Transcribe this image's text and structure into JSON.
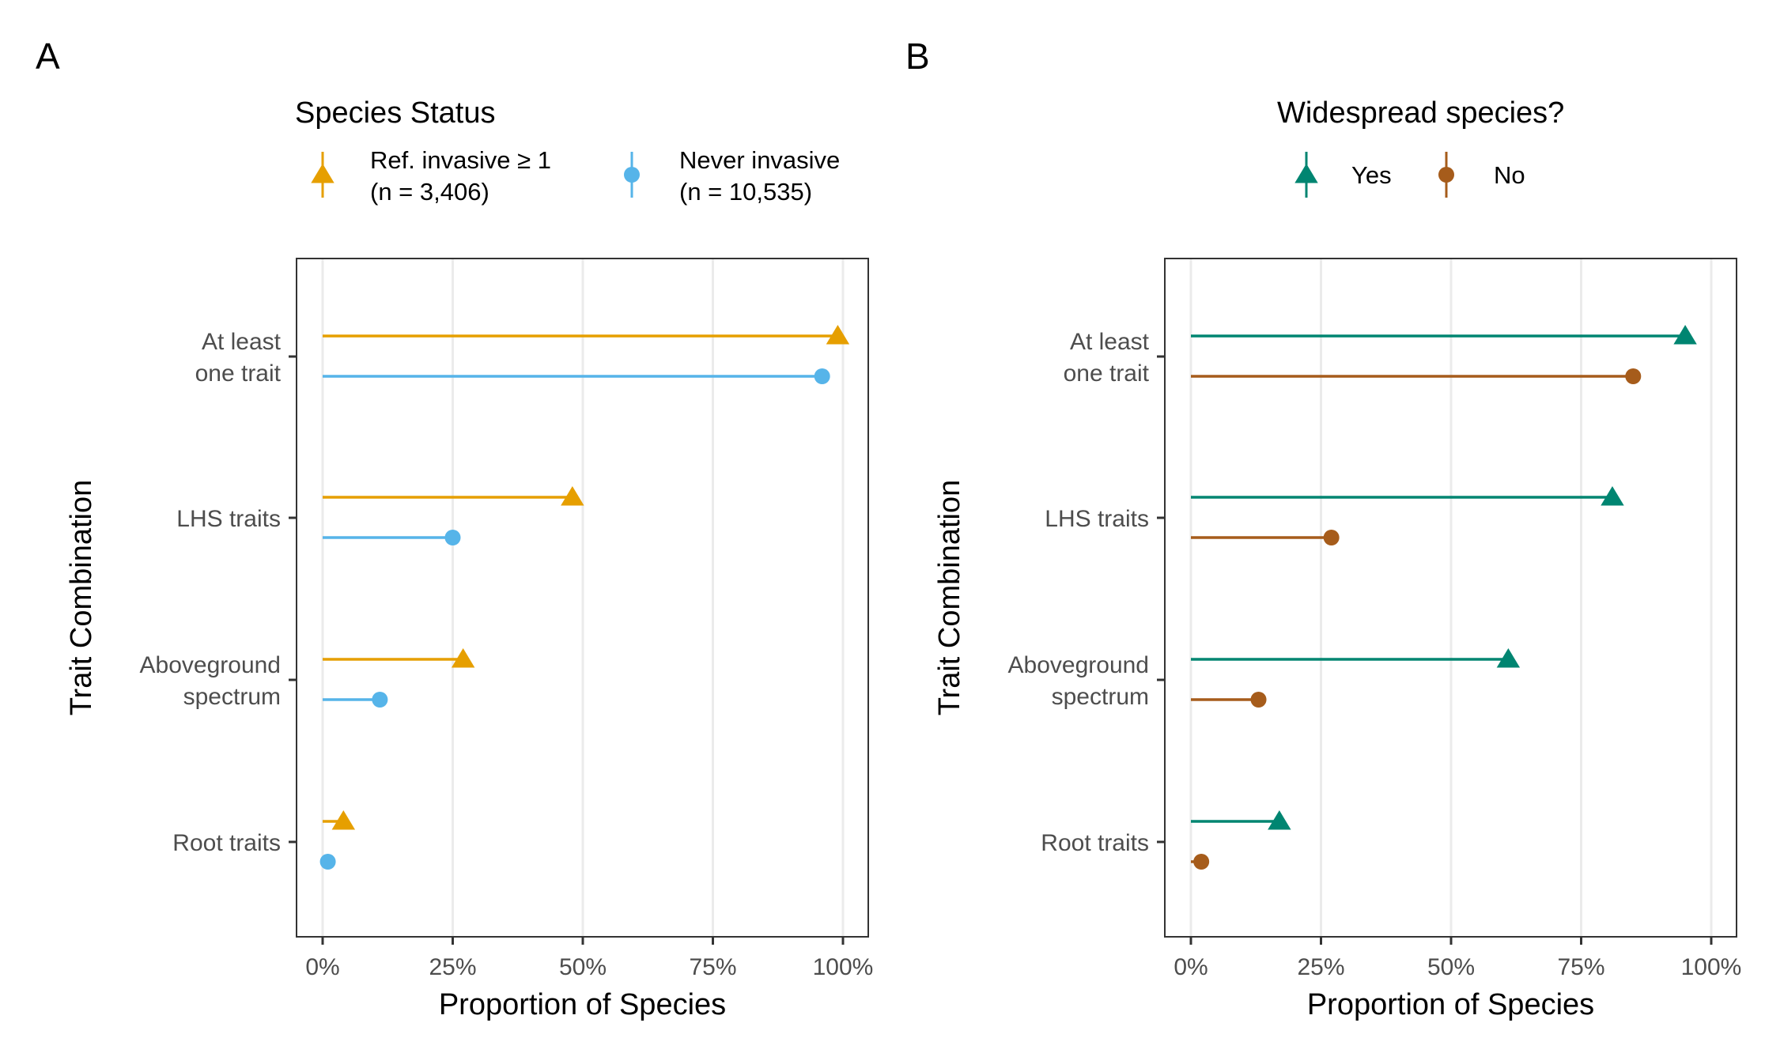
{
  "chart_data": [
    {
      "type": "lollipop",
      "tag": "A",
      "xlabel": "Proportion of Species",
      "ylabel": "Trait Combination",
      "xlim": [
        0,
        1
      ],
      "x_ticks": [
        0,
        0.25,
        0.5,
        0.75,
        1
      ],
      "x_tick_labels": [
        "0%",
        "25%",
        "50%",
        "75%",
        "100%"
      ],
      "grid": "vertical major",
      "legend": {
        "title": "Species Status",
        "position": "top",
        "entries": [
          {
            "label_lines": [
              "Ref. invasive ≥ 1",
              "(n =  3,406)"
            ],
            "shape": "triangle",
            "color": "#E69F00"
          },
          {
            "label_lines": [
              "Never invasive",
              "(n = 10,535)"
            ],
            "shape": "circle",
            "color": "#56B4E9"
          }
        ]
      },
      "categories": [
        {
          "label_lines": [
            "At least",
            "one trait"
          ]
        },
        {
          "label_lines": [
            "LHS traits"
          ]
        },
        {
          "label_lines": [
            "Aboveground",
            "spectrum"
          ]
        },
        {
          "label_lines": [
            "Root traits"
          ]
        }
      ],
      "series": [
        {
          "shape": "triangle",
          "color": "#E69F00",
          "values": [
            0.99,
            0.48,
            0.27,
            0.04
          ]
        },
        {
          "shape": "circle",
          "color": "#56B4E9",
          "values": [
            0.96,
            0.25,
            0.11,
            0.01
          ]
        }
      ]
    },
    {
      "type": "lollipop",
      "tag": "B",
      "xlabel": "Proportion of Species",
      "ylabel": "Trait Combination",
      "xlim": [
        0,
        1
      ],
      "x_ticks": [
        0,
        0.25,
        0.5,
        0.75,
        1
      ],
      "x_tick_labels": [
        "0%",
        "25%",
        "50%",
        "75%",
        "100%"
      ],
      "grid": "vertical major",
      "legend": {
        "title": "Widespread species?",
        "position": "top",
        "entries": [
          {
            "label_lines": [
              "Yes"
            ],
            "shape": "triangle",
            "color": "#008571"
          },
          {
            "label_lines": [
              "No"
            ],
            "shape": "circle",
            "color": "#A65C1B"
          }
        ]
      },
      "categories": [
        {
          "label_lines": [
            "At least",
            "one trait"
          ]
        },
        {
          "label_lines": [
            "LHS traits"
          ]
        },
        {
          "label_lines": [
            "Aboveground",
            "spectrum"
          ]
        },
        {
          "label_lines": [
            "Root traits"
          ]
        }
      ],
      "series": [
        {
          "shape": "triangle",
          "color": "#008571",
          "values": [
            0.95,
            0.81,
            0.61,
            0.17
          ]
        },
        {
          "shape": "circle",
          "color": "#A65C1B",
          "values": [
            0.85,
            0.27,
            0.13,
            0.02
          ]
        }
      ]
    }
  ]
}
